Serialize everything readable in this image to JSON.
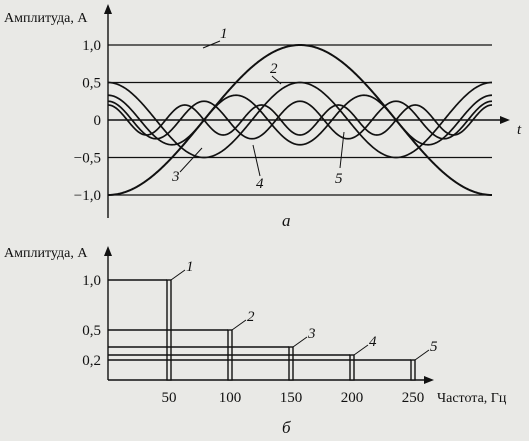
{
  "chart_data": [
    {
      "type": "line",
      "panel_label": "а",
      "ylabel": "Амплитуда, А",
      "xlabel": "t",
      "ylim": [
        -1.0,
        1.0
      ],
      "y_ticks": [
        "1,0",
        "0,5",
        "0",
        "−0,5",
        "−1,0"
      ],
      "y_tick_values": [
        1.0,
        0.5,
        0,
        -0.5,
        -1.0
      ],
      "grid": "horizontal lines at each y tick",
      "x_domain": [
        0,
        1
      ],
      "series": [
        {
          "name": "1",
          "harmonic": 1,
          "amplitude": 1.0
        },
        {
          "name": "2",
          "harmonic": 2,
          "amplitude": 0.5
        },
        {
          "name": "3",
          "harmonic": 3,
          "amplitude": 0.33
        },
        {
          "name": "4",
          "harmonic": 4,
          "amplitude": 0.25
        },
        {
          "name": "5",
          "harmonic": 5,
          "amplitude": 0.2
        }
      ]
    },
    {
      "type": "bar",
      "panel_label": "б",
      "ylabel": "Амплитуда, А",
      "xlabel": "Частота, Гц",
      "ylim": [
        0,
        1.1
      ],
      "y_ticks": [
        "1,0",
        "0,5",
        "0,2"
      ],
      "y_tick_values": [
        1.0,
        0.5,
        0.2
      ],
      "categories": [
        "50",
        "100",
        "150",
        "200",
        "250"
      ],
      "x_values": [
        50,
        100,
        150,
        200,
        250
      ],
      "xlim": [
        0,
        270
      ],
      "values": [
        1.0,
        0.5,
        0.33,
        0.25,
        0.2
      ],
      "bar_labels": [
        "1",
        "2",
        "3",
        "4",
        "5"
      ]
    }
  ],
  "colors": {
    "ink": "#111111",
    "paper": "#e9e9e6"
  }
}
